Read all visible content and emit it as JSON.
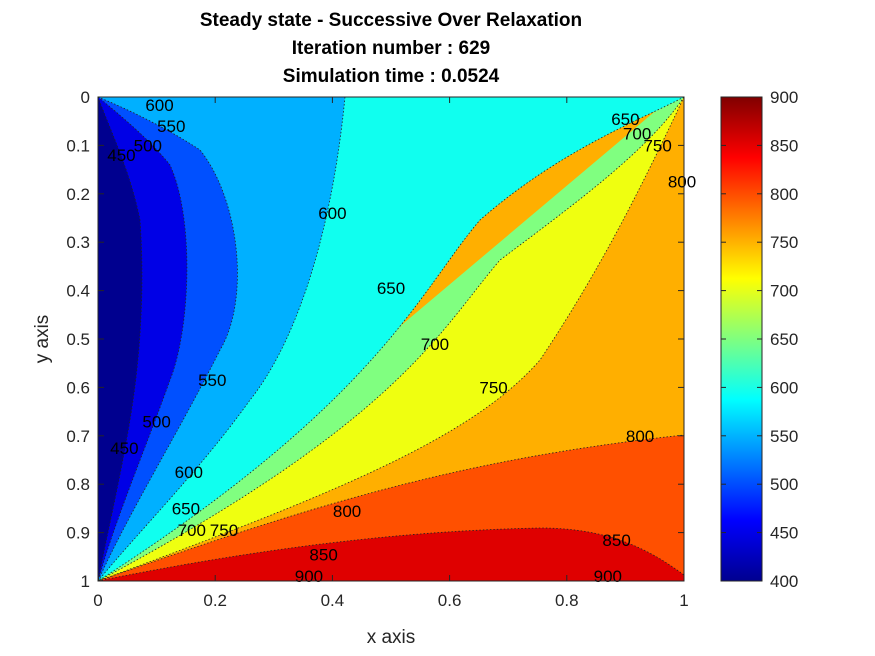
{
  "chart_data": {
    "type": "contour",
    "title_lines": [
      "Steady state - Successive Over Relaxation",
      "Iteration number : 629",
      "Simulation time : 0.0524"
    ],
    "xlabel": "x axis",
    "ylabel": "y axis",
    "xlim": [
      0,
      1
    ],
    "ylim": [
      0,
      1
    ],
    "y_direction": "reverse",
    "x_ticks": [
      "0",
      "0.2",
      "0.4",
      "0.6",
      "0.8",
      "1"
    ],
    "y_ticks": [
      "0",
      "0.1",
      "0.2",
      "0.3",
      "0.4",
      "0.5",
      "0.6",
      "0.7",
      "0.8",
      "0.9",
      "1"
    ],
    "colorbar": {
      "range": [
        400,
        900
      ],
      "ticks": [
        "400",
        "450",
        "500",
        "550",
        "600",
        "650",
        "700",
        "750",
        "800",
        "850",
        "900"
      ],
      "colormap": "jet",
      "placement": "right"
    },
    "contour_levels": [
      400,
      450,
      500,
      550,
      600,
      650,
      700,
      750,
      800,
      850,
      900
    ],
    "level_colors": [
      "#00008F",
      "#0000E6",
      "#0050FF",
      "#00B0FF",
      "#10FFEF",
      "#80FF80",
      "#EFFF10",
      "#FFAF00",
      "#FF5000",
      "#DF0000"
    ],
    "contour_labels": [
      {
        "text": "600",
        "x": 0.105,
        "y": 0.003
      },
      {
        "text": "550",
        "x": 0.125,
        "y": 0.06
      },
      {
        "text": "500",
        "x": 0.085,
        "y": 0.1
      },
      {
        "text": "450",
        "x": 0.04,
        "y": 0.12
      },
      {
        "text": "600",
        "x": 0.4,
        "y": 0.24
      },
      {
        "text": "650",
        "x": 0.9,
        "y": 0.045
      },
      {
        "text": "700",
        "x": 0.92,
        "y": 0.075
      },
      {
        "text": "750",
        "x": 0.955,
        "y": 0.1
      },
      {
        "text": "800",
        "x": 1.0,
        "y": 0.175
      },
      {
        "text": "650",
        "x": 0.5,
        "y": 0.395
      },
      {
        "text": "700",
        "x": 0.575,
        "y": 0.51
      },
      {
        "text": "750",
        "x": 0.675,
        "y": 0.6
      },
      {
        "text": "550",
        "x": 0.195,
        "y": 0.585
      },
      {
        "text": "500",
        "x": 0.1,
        "y": 0.67
      },
      {
        "text": "450",
        "x": 0.045,
        "y": 0.725
      },
      {
        "text": "800",
        "x": 0.925,
        "y": 0.7
      },
      {
        "text": "600",
        "x": 0.155,
        "y": 0.775
      },
      {
        "text": "650",
        "x": 0.15,
        "y": 0.85
      },
      {
        "text": "700",
        "x": 0.16,
        "y": 0.895
      },
      {
        "text": "750",
        "x": 0.215,
        "y": 0.895
      },
      {
        "text": "800",
        "x": 0.425,
        "y": 0.855
      },
      {
        "text": "850",
        "x": 0.385,
        "y": 0.945
      },
      {
        "text": "850",
        "x": 0.885,
        "y": 0.915
      },
      {
        "text": "900",
        "x": 0.36,
        "y": 0.99
      },
      {
        "text": "900",
        "x": 0.87,
        "y": 0.99
      }
    ]
  }
}
